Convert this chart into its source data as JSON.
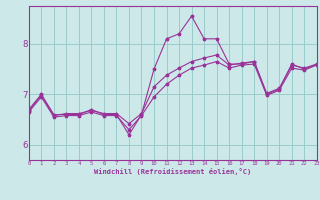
{
  "title": "",
  "xlabel": "Windchill (Refroidissement éolien,°C)",
  "bg_color": "#cce8e8",
  "line_color": "#993399",
  "grid_color": "#99cccc",
  "xmin": 0,
  "xmax": 23,
  "ymin": 5.7,
  "ymax": 8.75,
  "yticks": [
    6,
    7,
    8
  ],
  "xticks": [
    0,
    1,
    2,
    3,
    4,
    5,
    6,
    7,
    8,
    9,
    10,
    11,
    12,
    13,
    14,
    15,
    16,
    17,
    18,
    19,
    20,
    21,
    22,
    23
  ],
  "series1_x": [
    0,
    1,
    2,
    3,
    4,
    5,
    6,
    7,
    8,
    9,
    10,
    11,
    12,
    13,
    14,
    15,
    16,
    17,
    18,
    19,
    20,
    21,
    22,
    23
  ],
  "series1_y": [
    6.7,
    7.0,
    6.6,
    6.6,
    6.6,
    6.7,
    6.6,
    6.6,
    6.2,
    6.6,
    7.5,
    8.1,
    8.2,
    8.55,
    8.1,
    8.1,
    7.6,
    7.6,
    7.65,
    7.0,
    7.1,
    7.6,
    7.5,
    7.6
  ],
  "series2_x": [
    0,
    1,
    2,
    3,
    4,
    5,
    6,
    7,
    8,
    9,
    10,
    11,
    12,
    13,
    14,
    15,
    16,
    17,
    18,
    19,
    20,
    21,
    22,
    23
  ],
  "series2_y": [
    6.68,
    6.98,
    6.58,
    6.62,
    6.62,
    6.68,
    6.62,
    6.62,
    6.42,
    6.62,
    7.15,
    7.38,
    7.52,
    7.65,
    7.72,
    7.78,
    7.58,
    7.62,
    7.65,
    7.02,
    7.12,
    7.58,
    7.52,
    7.6
  ],
  "series3_x": [
    0,
    1,
    2,
    3,
    4,
    5,
    6,
    7,
    8,
    9,
    10,
    11,
    12,
    13,
    14,
    15,
    16,
    17,
    18,
    19,
    20,
    21,
    22,
    23
  ],
  "series3_y": [
    6.65,
    6.95,
    6.55,
    6.58,
    6.58,
    6.65,
    6.58,
    6.58,
    6.3,
    6.58,
    6.95,
    7.2,
    7.38,
    7.52,
    7.58,
    7.65,
    7.52,
    7.58,
    7.6,
    6.98,
    7.08,
    7.52,
    7.48,
    7.58
  ]
}
